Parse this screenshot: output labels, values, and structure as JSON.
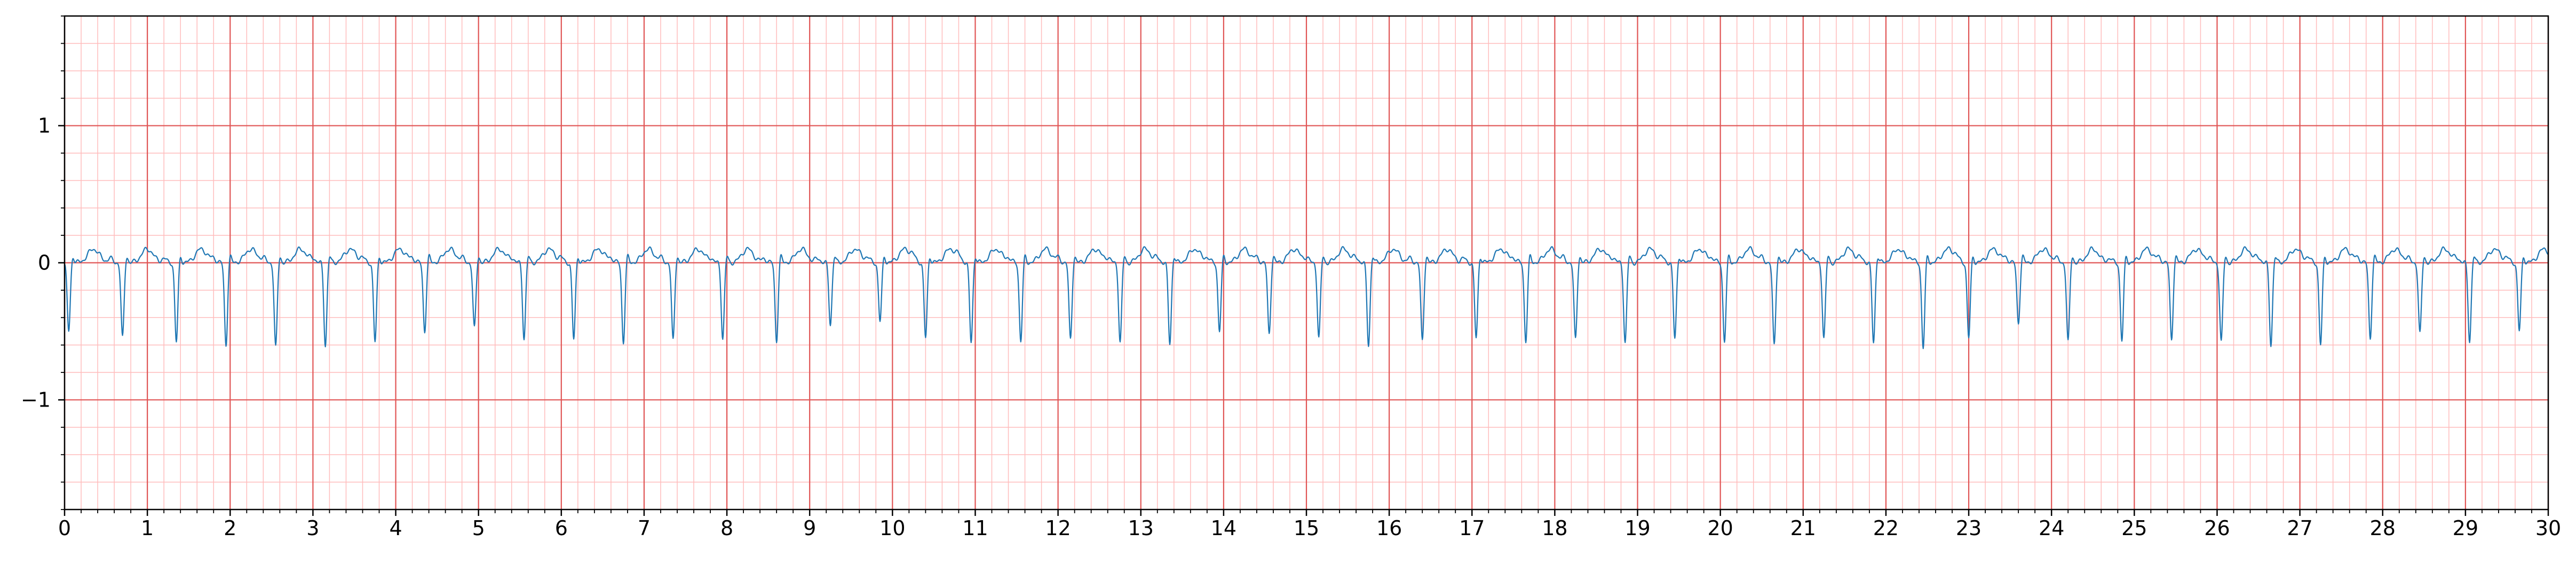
{
  "chart_data": {
    "type": "line",
    "title": "",
    "xlabel": "",
    "ylabel": "",
    "xlim": [
      0,
      30
    ],
    "ylim": [
      -1.8,
      1.8
    ],
    "x_ticks": [
      0,
      1,
      2,
      3,
      4,
      5,
      6,
      7,
      8,
      9,
      10,
      11,
      12,
      13,
      14,
      15,
      16,
      17,
      18,
      19,
      20,
      21,
      22,
      23,
      24,
      25,
      26,
      27,
      28,
      29,
      30
    ],
    "x_tick_labels": [
      "0",
      "1",
      "2",
      "3",
      "4",
      "5",
      "6",
      "7",
      "8",
      "9",
      "10",
      "11",
      "12",
      "13",
      "14",
      "15",
      "16",
      "17",
      "18",
      "19",
      "20",
      "21",
      "22",
      "23",
      "24",
      "25",
      "26",
      "27",
      "28",
      "29",
      "30"
    ],
    "y_ticks": [
      -1,
      0,
      1
    ],
    "y_tick_labels": [
      "−1",
      "0",
      "1"
    ],
    "grid": true,
    "grid_major_x_step": 1,
    "grid_minor_x_step": 0.2,
    "grid_major_y_step": 1,
    "grid_minor_y_step": 0.2,
    "colors": {
      "line": "#1f77b4",
      "major_grid": "#e05555",
      "minor_grid": "#ffbcbc",
      "axes": "#000000"
    },
    "series": [
      {
        "beat_times": [
          0.05,
          0.7,
          1.35,
          1.95,
          2.55,
          3.15,
          3.75,
          4.35,
          4.95,
          5.55,
          6.15,
          6.75,
          7.35,
          7.95,
          8.6,
          9.25,
          9.85,
          10.4,
          10.95,
          11.55,
          12.15,
          12.75,
          13.35,
          13.95,
          14.55,
          15.15,
          15.75,
          16.4,
          17.05,
          17.65,
          18.25,
          18.85,
          19.45,
          20.05,
          20.65,
          21.25,
          21.85,
          22.45,
          23.0,
          23.6,
          24.2,
          24.85,
          25.45,
          26.05,
          26.65,
          27.25,
          27.85,
          28.45,
          29.05,
          29.65
        ],
        "beat_troughs": [
          -0.5,
          -0.55,
          -0.58,
          -0.6,
          -0.62,
          -0.6,
          -0.58,
          -0.5,
          -0.48,
          -0.55,
          -0.56,
          -0.58,
          -0.57,
          -0.55,
          -0.57,
          -0.45,
          -0.43,
          -0.55,
          -0.58,
          -0.57,
          -0.56,
          -0.58,
          -0.59,
          -0.5,
          -0.52,
          -0.55,
          -0.6,
          -0.57,
          -0.55,
          -0.57,
          -0.56,
          -0.58,
          -0.55,
          -0.57,
          -0.6,
          -0.55,
          -0.58,
          -0.62,
          -0.55,
          -0.44,
          -0.58,
          -0.57,
          -0.56,
          -0.58,
          -0.6,
          -0.6,
          -0.55,
          -0.52,
          -0.57,
          -0.5
        ],
        "t_wave_amplitude": 0.1,
        "baseline": 0.0
      }
    ]
  }
}
